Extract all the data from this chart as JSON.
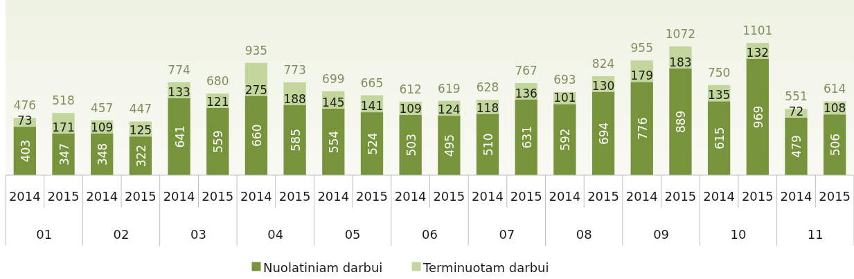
{
  "chart_data": {
    "type": "bar",
    "stacked": true,
    "data_labels": true,
    "legend": "bottom",
    "categories": [
      "2014",
      "2015",
      "2014",
      "2015",
      "2014",
      "2015",
      "2014",
      "2015",
      "2014",
      "2015",
      "2014",
      "2015",
      "2014",
      "2015",
      "2014",
      "2015",
      "2014",
      "2015",
      "2014",
      "2015",
      "2014",
      "2015"
    ],
    "series": [
      {
        "name": "Nuolatiniam darbui",
        "color": "#77933c",
        "values": [
          403,
          347,
          348,
          322,
          641,
          559,
          660,
          585,
          554,
          524,
          503,
          495,
          510,
          631,
          592,
          694,
          776,
          889,
          615,
          969,
          479,
          506
        ]
      },
      {
        "name": "Terminuotam darbui",
        "color": "#c3d69b",
        "values": [
          73,
          171,
          109,
          125,
          133,
          121,
          275,
          188,
          145,
          141,
          109,
          124,
          118,
          136,
          101,
          130,
          179,
          183,
          135,
          132,
          72,
          108
        ]
      }
    ],
    "totals": [
      "476",
      "518",
      "457",
      "447",
      "774",
      "680",
      "935",
      "773",
      "699",
      "665",
      "612",
      "619",
      "628",
      "767",
      "693",
      "824",
      "955",
      "1072",
      "750",
      "1101",
      "551",
      "614"
    ],
    "annotations": [
      "01",
      "02",
      "03",
      "04",
      "05",
      "06",
      "07",
      "08",
      "09",
      "10",
      "11"
    ]
  }
}
